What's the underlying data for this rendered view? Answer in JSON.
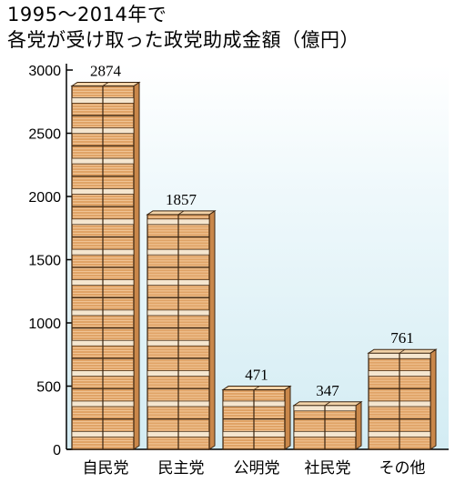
{
  "chart_data": {
    "type": "bar",
    "title_lines": [
      "1995～2014年で",
      "各党が受け取った政党助成金額（億円）"
    ],
    "categories": [
      "自民党",
      "民主党",
      "公明党",
      "社民党",
      "その他"
    ],
    "values": [
      2874,
      1857,
      471,
      347,
      761
    ],
    "data_labels": [
      "2874",
      "1857",
      "471",
      "347",
      "761"
    ],
    "yticks": [
      "0",
      "500",
      "1000",
      "1500",
      "2000",
      "2500",
      "3000"
    ],
    "ylim": [
      0,
      3000
    ],
    "grid": false,
    "colors": {
      "background_tint": "#dff1f6",
      "bundle_face": "#e0a366",
      "bundle_side": "#c9874a",
      "bundle_top": "#f3d3a8",
      "band": "#f5e6cf",
      "outline": "#3a2410"
    }
  }
}
